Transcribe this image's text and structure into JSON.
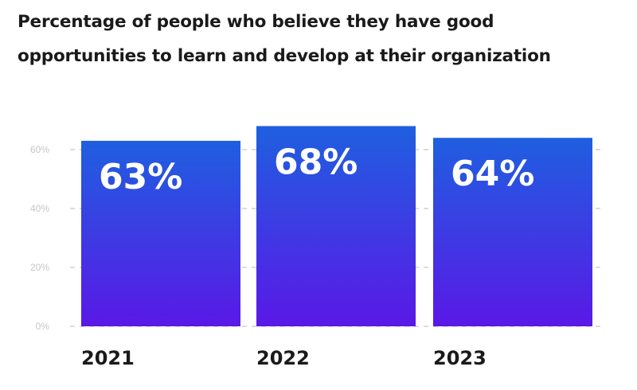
{
  "chart_data": {
    "type": "bar",
    "title_lines": [
      "Percentage of people who believe they have good",
      "opportunities to learn and develop at their organization"
    ],
    "categories": [
      "2021",
      "2022",
      "2023"
    ],
    "values": [
      63,
      68,
      64
    ],
    "value_labels": [
      "63%",
      "68%",
      "64%"
    ],
    "y_ticks": [
      0,
      20,
      40,
      60
    ],
    "y_tick_labels": [
      "0%",
      "20%",
      "40%",
      "60%"
    ],
    "ylim": [
      0,
      70
    ],
    "grid": true,
    "legend": "none",
    "colors": {
      "bar_top": "#1f5fe0",
      "bar_bottom": "#5a18e6"
    }
  }
}
